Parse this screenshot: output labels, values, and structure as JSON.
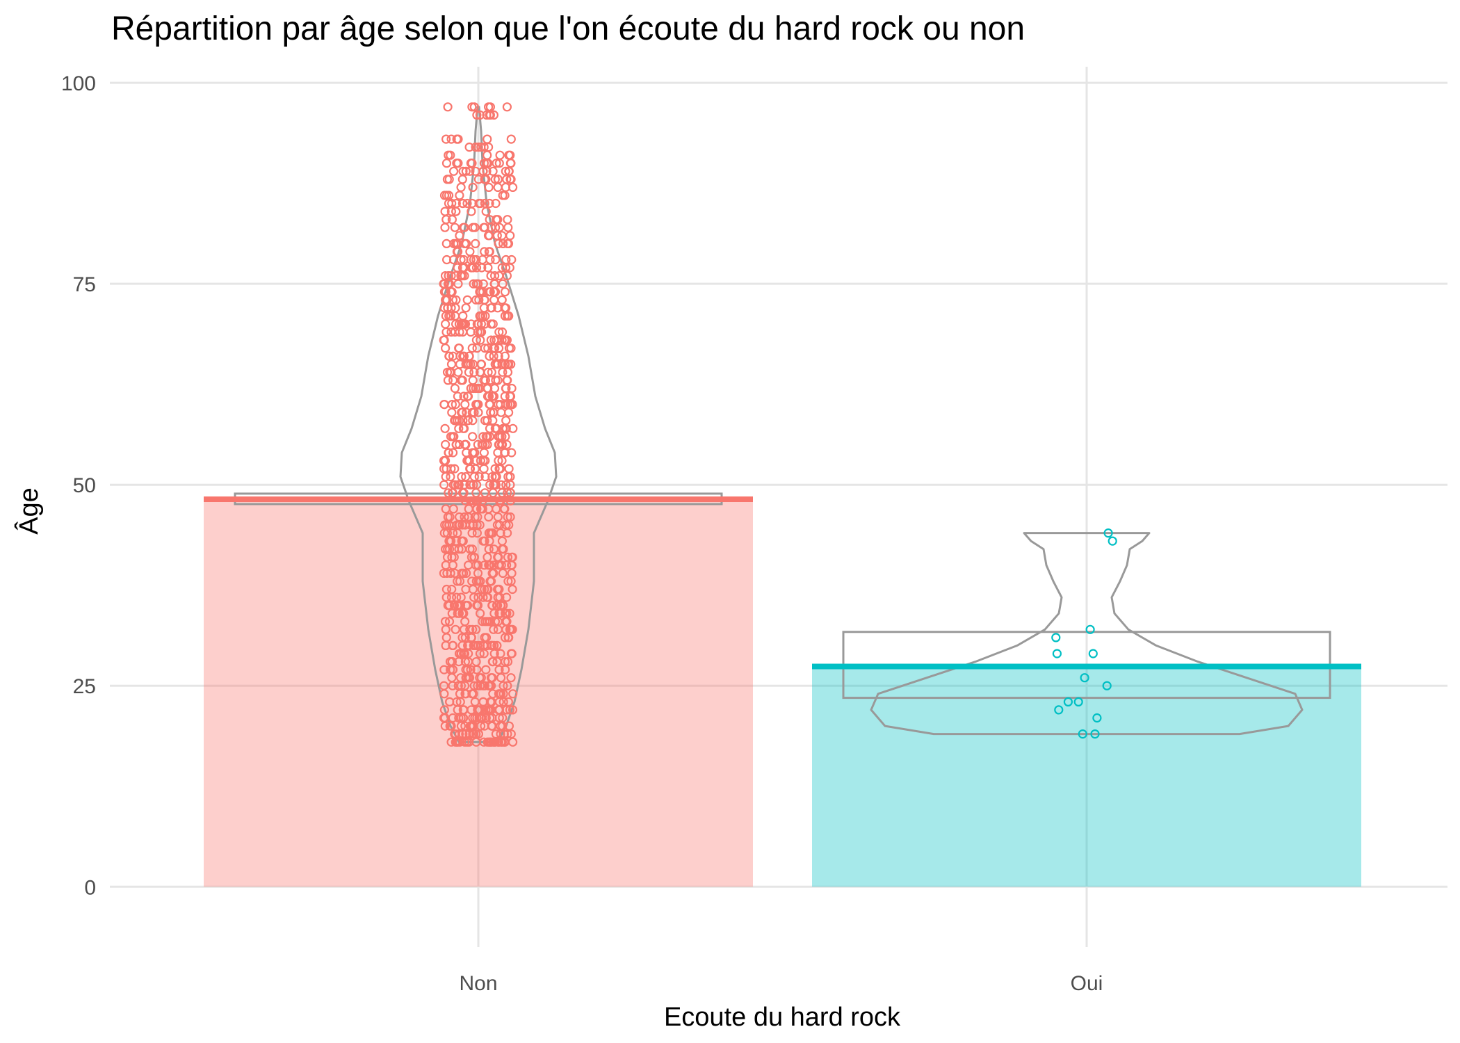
{
  "chart_data": {
    "type": "bar",
    "title": "Répartition par âge selon que l'on écoute du hard rock ou non",
    "xlabel": "Ecoute du hard rock",
    "ylabel": "Âge",
    "categories": [
      "Non",
      "Oui"
    ],
    "values": [
      48.2,
      27.4
    ],
    "ylim": [
      -7.5,
      102
    ],
    "yticks": [
      0,
      25,
      50,
      75,
      100
    ],
    "grid": true,
    "legend": "none",
    "colors": {
      "Non": "#F8766D",
      "Oui": "#00BFC4",
      "outline": "#999999"
    },
    "confidence_intervals": [
      {
        "category": "Non",
        "lower": 47.6,
        "upper": 48.9
      },
      {
        "category": "Oui",
        "lower": 23.5,
        "upper": 31.7
      }
    ],
    "violins": [
      {
        "category": "Non",
        "min": 18,
        "max": 97
      },
      {
        "category": "Oui",
        "min": 19,
        "max": 44
      }
    ],
    "points": [
      {
        "category": "Non",
        "y": [
          18,
          18,
          18,
          18,
          19,
          19,
          19,
          20,
          20,
          20,
          21,
          21,
          21,
          22,
          22,
          22,
          23,
          23,
          24,
          24,
          25,
          25,
          25,
          26,
          26,
          27,
          27,
          28,
          28,
          29,
          29,
          30,
          30,
          30,
          31,
          31,
          32,
          32,
          33,
          33,
          34,
          34,
          35,
          35,
          35,
          36,
          36,
          37,
          37,
          38,
          38,
          39,
          39,
          40,
          40,
          40,
          41,
          41,
          42,
          42,
          43,
          43,
          44,
          44,
          45,
          45,
          45,
          46,
          46,
          47,
          47,
          48,
          48,
          49,
          49,
          50,
          50,
          50,
          51,
          51,
          52,
          52,
          53,
          53,
          54,
          54,
          55,
          55,
          55,
          56,
          56,
          57,
          57,
          58,
          58,
          59,
          59,
          60,
          60,
          60,
          61,
          61,
          62,
          62,
          63,
          63,
          64,
          64,
          65,
          65,
          65,
          66,
          66,
          67,
          67,
          68,
          68,
          69,
          69,
          70,
          70,
          70,
          71,
          71,
          72,
          72,
          73,
          73,
          74,
          74,
          75,
          75,
          76,
          76,
          77,
          77,
          78,
          78,
          79,
          80,
          80,
          81,
          82,
          82,
          83,
          84,
          85,
          85,
          86,
          87,
          88,
          88,
          89,
          89,
          90,
          90,
          91,
          92,
          93,
          96,
          97
        ]
      },
      {
        "category": "Oui",
        "y": [
          19,
          19,
          21,
          22,
          23,
          23,
          25,
          26,
          29,
          29,
          31,
          32,
          43,
          44
        ]
      }
    ]
  }
}
